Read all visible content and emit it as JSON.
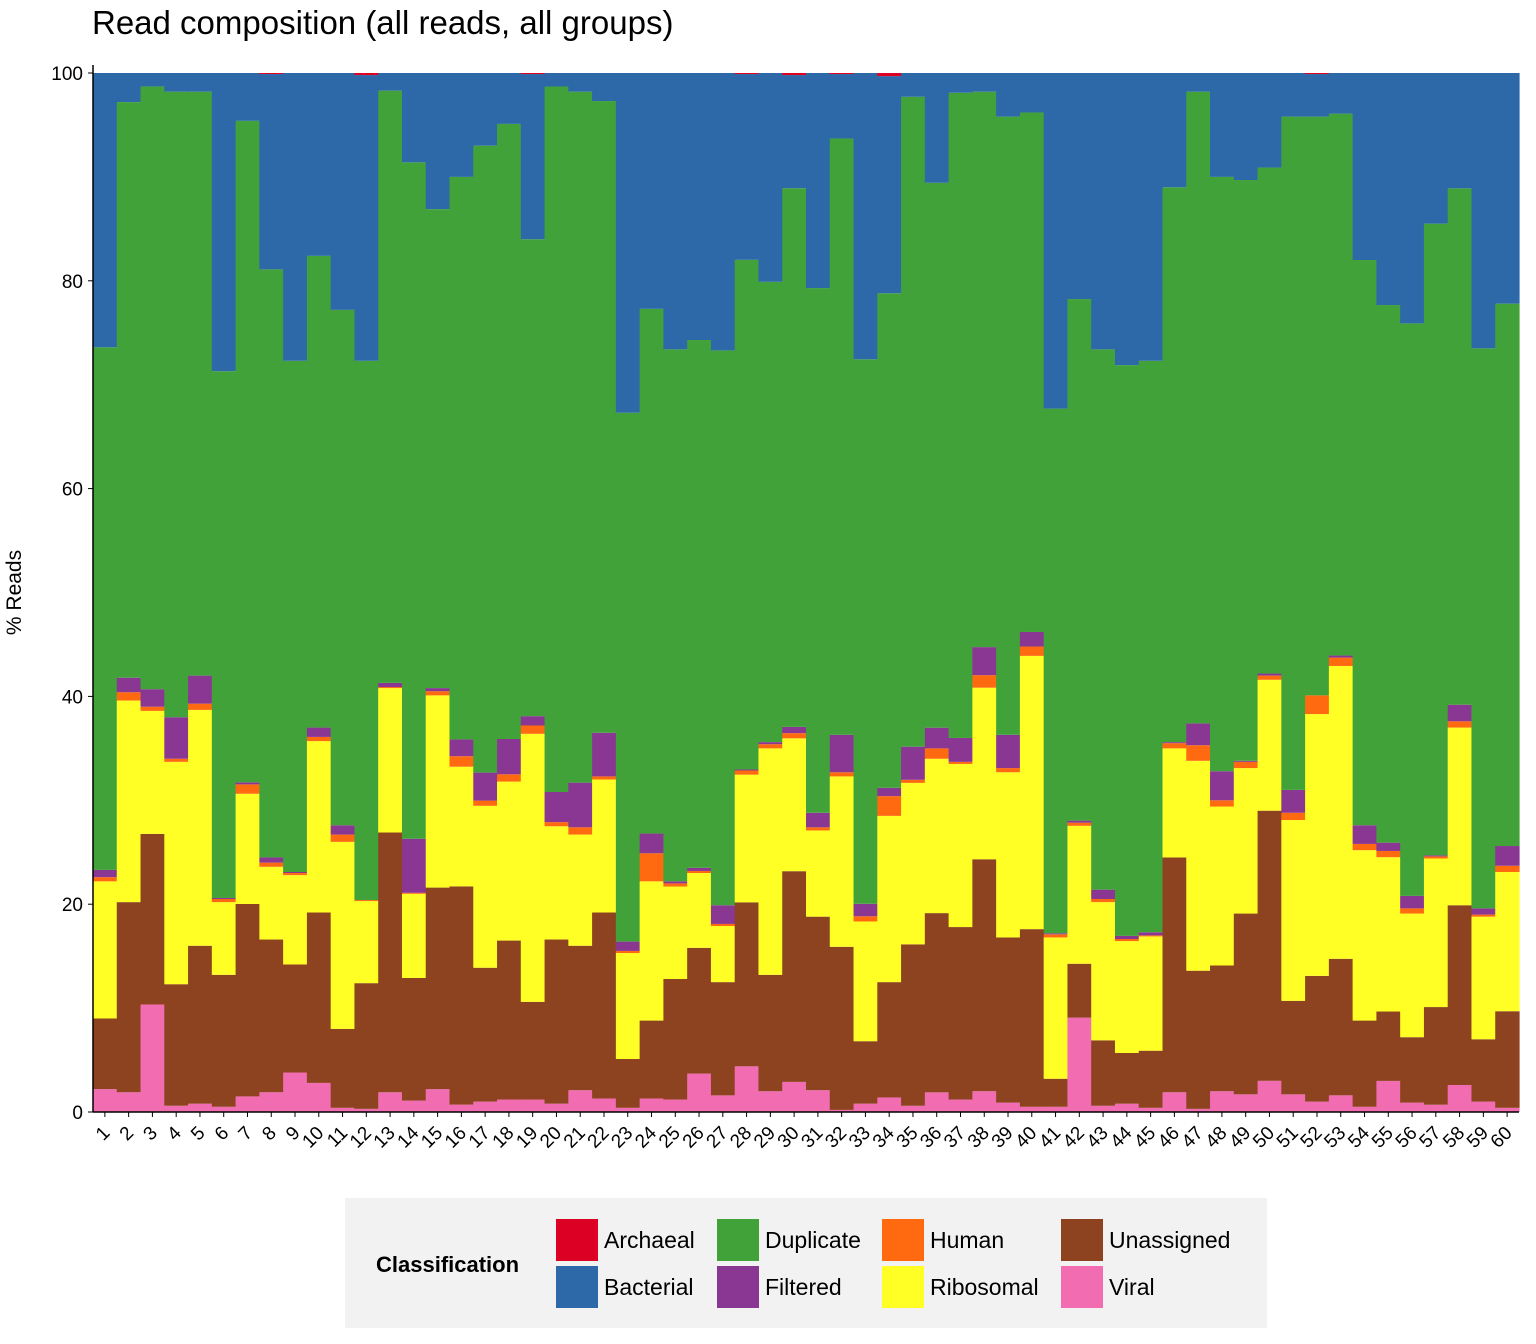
{
  "chart_data": {
    "type": "bar",
    "stacked": true,
    "title": "Read composition (all reads, all groups)",
    "xlabel": "",
    "ylabel": "% Reads",
    "ylim": [
      0,
      100
    ],
    "yticks": [
      0,
      20,
      40,
      60,
      80,
      100
    ],
    "categories": [
      "1",
      "2",
      "3",
      "4",
      "5",
      "6",
      "7",
      "8",
      "9",
      "10",
      "11",
      "12",
      "13",
      "14",
      "15",
      "16",
      "17",
      "18",
      "19",
      "20",
      "21",
      "22",
      "23",
      "24",
      "25",
      "26",
      "27",
      "28",
      "29",
      "30",
      "31",
      "32",
      "33",
      "34",
      "35",
      "36",
      "37",
      "38",
      "39",
      "40",
      "41",
      "42",
      "43",
      "44",
      "45",
      "46",
      "47",
      "48",
      "49",
      "50",
      "51",
      "52",
      "53",
      "54",
      "55",
      "56",
      "57",
      "58",
      "59",
      "60"
    ],
    "legend_title": "Classification",
    "legend_position": "bottom",
    "series": [
      {
        "name": "Viral",
        "color": "#F16CB0",
        "values": [
          2.2,
          1.9,
          10.4,
          0.6,
          0.8,
          0.5,
          1.5,
          1.9,
          3.8,
          2.8,
          0.4,
          0.3,
          1.9,
          1.1,
          2.2,
          0.7,
          1.0,
          1.2,
          1.2,
          0.8,
          2.1,
          1.3,
          0.4,
          1.3,
          1.2,
          3.7,
          1.6,
          4.4,
          2.0,
          2.9,
          2.1,
          0.2,
          0.8,
          1.4,
          0.6,
          1.9,
          1.2,
          2.0,
          0.9,
          0.5,
          0.5,
          9.1,
          0.6,
          0.8,
          0.4,
          1.9,
          0.3,
          2.0,
          1.7,
          3.0,
          1.7,
          1.0,
          1.6,
          0.5,
          3.0,
          0.9,
          0.7,
          2.6,
          1.0,
          0.4
        ]
      },
      {
        "name": "Unassigned",
        "color": "#8E4320",
        "values": [
          6.8,
          18.3,
          16.5,
          11.7,
          15.2,
          12.7,
          18.5,
          14.7,
          10.4,
          16.4,
          7.6,
          12.1,
          25.0,
          11.8,
          19.4,
          20.8,
          12.9,
          15.3,
          9.4,
          15.8,
          13.9,
          17.9,
          4.7,
          7.5,
          11.6,
          12.1,
          10.9,
          15.8,
          11.2,
          20.3,
          16.7,
          15.7,
          6.0,
          11.1,
          15.6,
          17.3,
          16.6,
          22.3,
          15.9,
          17.1,
          2.7,
          5.2,
          6.3,
          4.9,
          5.5,
          22.6,
          13.3,
          12.1,
          17.4,
          26.0,
          9.0,
          12.1,
          13.1,
          8.3,
          6.7,
          6.3,
          9.4,
          17.3,
          6.0,
          9.3
        ]
      },
      {
        "name": "Ribosomal",
        "color": "#FFFF25",
        "values": [
          13.2,
          19.4,
          11.9,
          21.4,
          22.7,
          7.0,
          10.6,
          7.0,
          8.6,
          16.5,
          18.0,
          7.9,
          13.9,
          8.1,
          18.5,
          11.4,
          15.6,
          15.3,
          25.8,
          10.9,
          10.7,
          12.8,
          10.2,
          13.4,
          8.9,
          7.2,
          5.4,
          12.3,
          21.8,
          12.8,
          8.3,
          16.4,
          11.5,
          16.0,
          15.6,
          14.9,
          15.7,
          16.5,
          15.9,
          26.3,
          13.6,
          13.3,
          13.3,
          10.8,
          11.0,
          10.5,
          20.2,
          15.3,
          14.0,
          12.6,
          17.4,
          25.2,
          28.1,
          16.4,
          14.9,
          11.9,
          14.3,
          17.1,
          11.8,
          13.4
        ]
      },
      {
        "name": "Human",
        "color": "#FF6A10",
        "values": [
          0.4,
          0.8,
          0.4,
          0.3,
          0.6,
          0.3,
          0.9,
          0.4,
          0.2,
          0.4,
          0.7,
          0.1,
          0.1,
          0.1,
          0.4,
          1.0,
          0.5,
          0.7,
          0.8,
          0.4,
          0.7,
          0.3,
          0.2,
          2.7,
          0.3,
          0.2,
          0.2,
          0.4,
          0.4,
          0.5,
          0.3,
          0.4,
          0.5,
          1.9,
          0.3,
          1.0,
          0.2,
          1.2,
          0.4,
          0.9,
          0.3,
          0.3,
          0.3,
          0.2,
          0.1,
          0.5,
          1.5,
          0.6,
          0.6,
          0.4,
          0.7,
          1.8,
          0.8,
          0.6,
          0.6,
          0.5,
          0.2,
          0.6,
          0.2,
          0.6
        ]
      },
      {
        "name": "Filtered",
        "color": "#8A3794",
        "values": [
          0.7,
          1.4,
          1.7,
          4.0,
          2.7,
          0.1,
          0.2,
          0.5,
          0.1,
          0.9,
          0.9,
          0.0,
          0.4,
          5.2,
          0.3,
          1.6,
          2.7,
          3.4,
          0.9,
          2.9,
          4.3,
          4.2,
          0.9,
          1.9,
          0.2,
          0.3,
          1.8,
          0.1,
          0.2,
          0.6,
          1.4,
          3.6,
          1.2,
          0.8,
          3.2,
          2.0,
          2.3,
          2.7,
          3.2,
          1.4,
          0.1,
          0.2,
          0.9,
          0.3,
          0.3,
          0.1,
          2.1,
          2.8,
          0.1,
          0.2,
          2.2,
          0.0,
          0.2,
          1.8,
          0.8,
          1.2,
          0.1,
          1.6,
          0.6,
          1.9
        ]
      },
      {
        "name": "Duplicate",
        "color": "#42A23A",
        "values": [
          50.3,
          55.4,
          58.3,
          60.2,
          56.2,
          50.7,
          63.6,
          56.6,
          49.2,
          45.4,
          49.6,
          51.9,
          57.0,
          65.1,
          46.1,
          53.6,
          60.4,
          59.2,
          45.9,
          67.9,
          66.5,
          60.8,
          50.9,
          50.5,
          51.2,
          50.8,
          53.4,
          49.1,
          44.3,
          51.9,
          50.5,
          57.4,
          52.3,
          47.6,
          62.8,
          52.6,
          62.1,
          53.4,
          59.5,
          50.0,
          50.5,
          50.3,
          52.0,
          55.1,
          55.0,
          53.4,
          60.8,
          57.2,
          55.9,
          48.7,
          64.8,
          55.7,
          52.0,
          54.4,
          51.9,
          55.1,
          60.8,
          49.7,
          53.9,
          52.2
        ]
      },
      {
        "name": "Bacterial",
        "color": "#2D69A8",
        "values": [
          26.4,
          2.8,
          1.3,
          1.8,
          1.8,
          28.7,
          4.6,
          18.8,
          27.7,
          17.6,
          22.8,
          27.5,
          1.7,
          8.6,
          13.1,
          9.9,
          7.0,
          4.9,
          15.9,
          1.3,
          1.8,
          2.7,
          32.7,
          22.7,
          26.6,
          25.7,
          26.7,
          17.9,
          20.1,
          10.9,
          20.7,
          6.2,
          27.5,
          20.9,
          2.3,
          10.6,
          1.9,
          1.8,
          4.2,
          3.8,
          32.3,
          21.8,
          26.6,
          28.2,
          27.7,
          11.0,
          1.8,
          10.0,
          10.3,
          9.1,
          4.2,
          4.1,
          3.9,
          18.0,
          22.4,
          24.1,
          14.5,
          11.1,
          26.5,
          22.2
        ]
      },
      {
        "name": "Archaeal",
        "color": "#DD0025",
        "values": [
          0,
          0,
          0,
          0,
          0,
          0,
          0,
          0.1,
          0,
          0,
          0,
          0.2,
          0,
          0,
          0,
          0,
          0,
          0,
          0.1,
          0,
          0,
          0,
          0,
          0,
          0,
          0,
          0,
          0.1,
          0,
          0.2,
          0,
          0.1,
          0,
          0.3,
          0,
          0,
          0,
          0,
          0,
          0,
          0,
          0,
          0,
          0,
          0,
          0,
          0,
          0,
          0,
          0,
          0,
          0.1,
          0,
          0,
          0,
          0,
          0,
          0,
          0,
          0
        ]
      }
    ],
    "legend_order": [
      "Archaeal",
      "Bacterial",
      "Duplicate",
      "Filtered",
      "Human",
      "Ribosomal",
      "Unassigned",
      "Viral"
    ],
    "grid": false
  }
}
